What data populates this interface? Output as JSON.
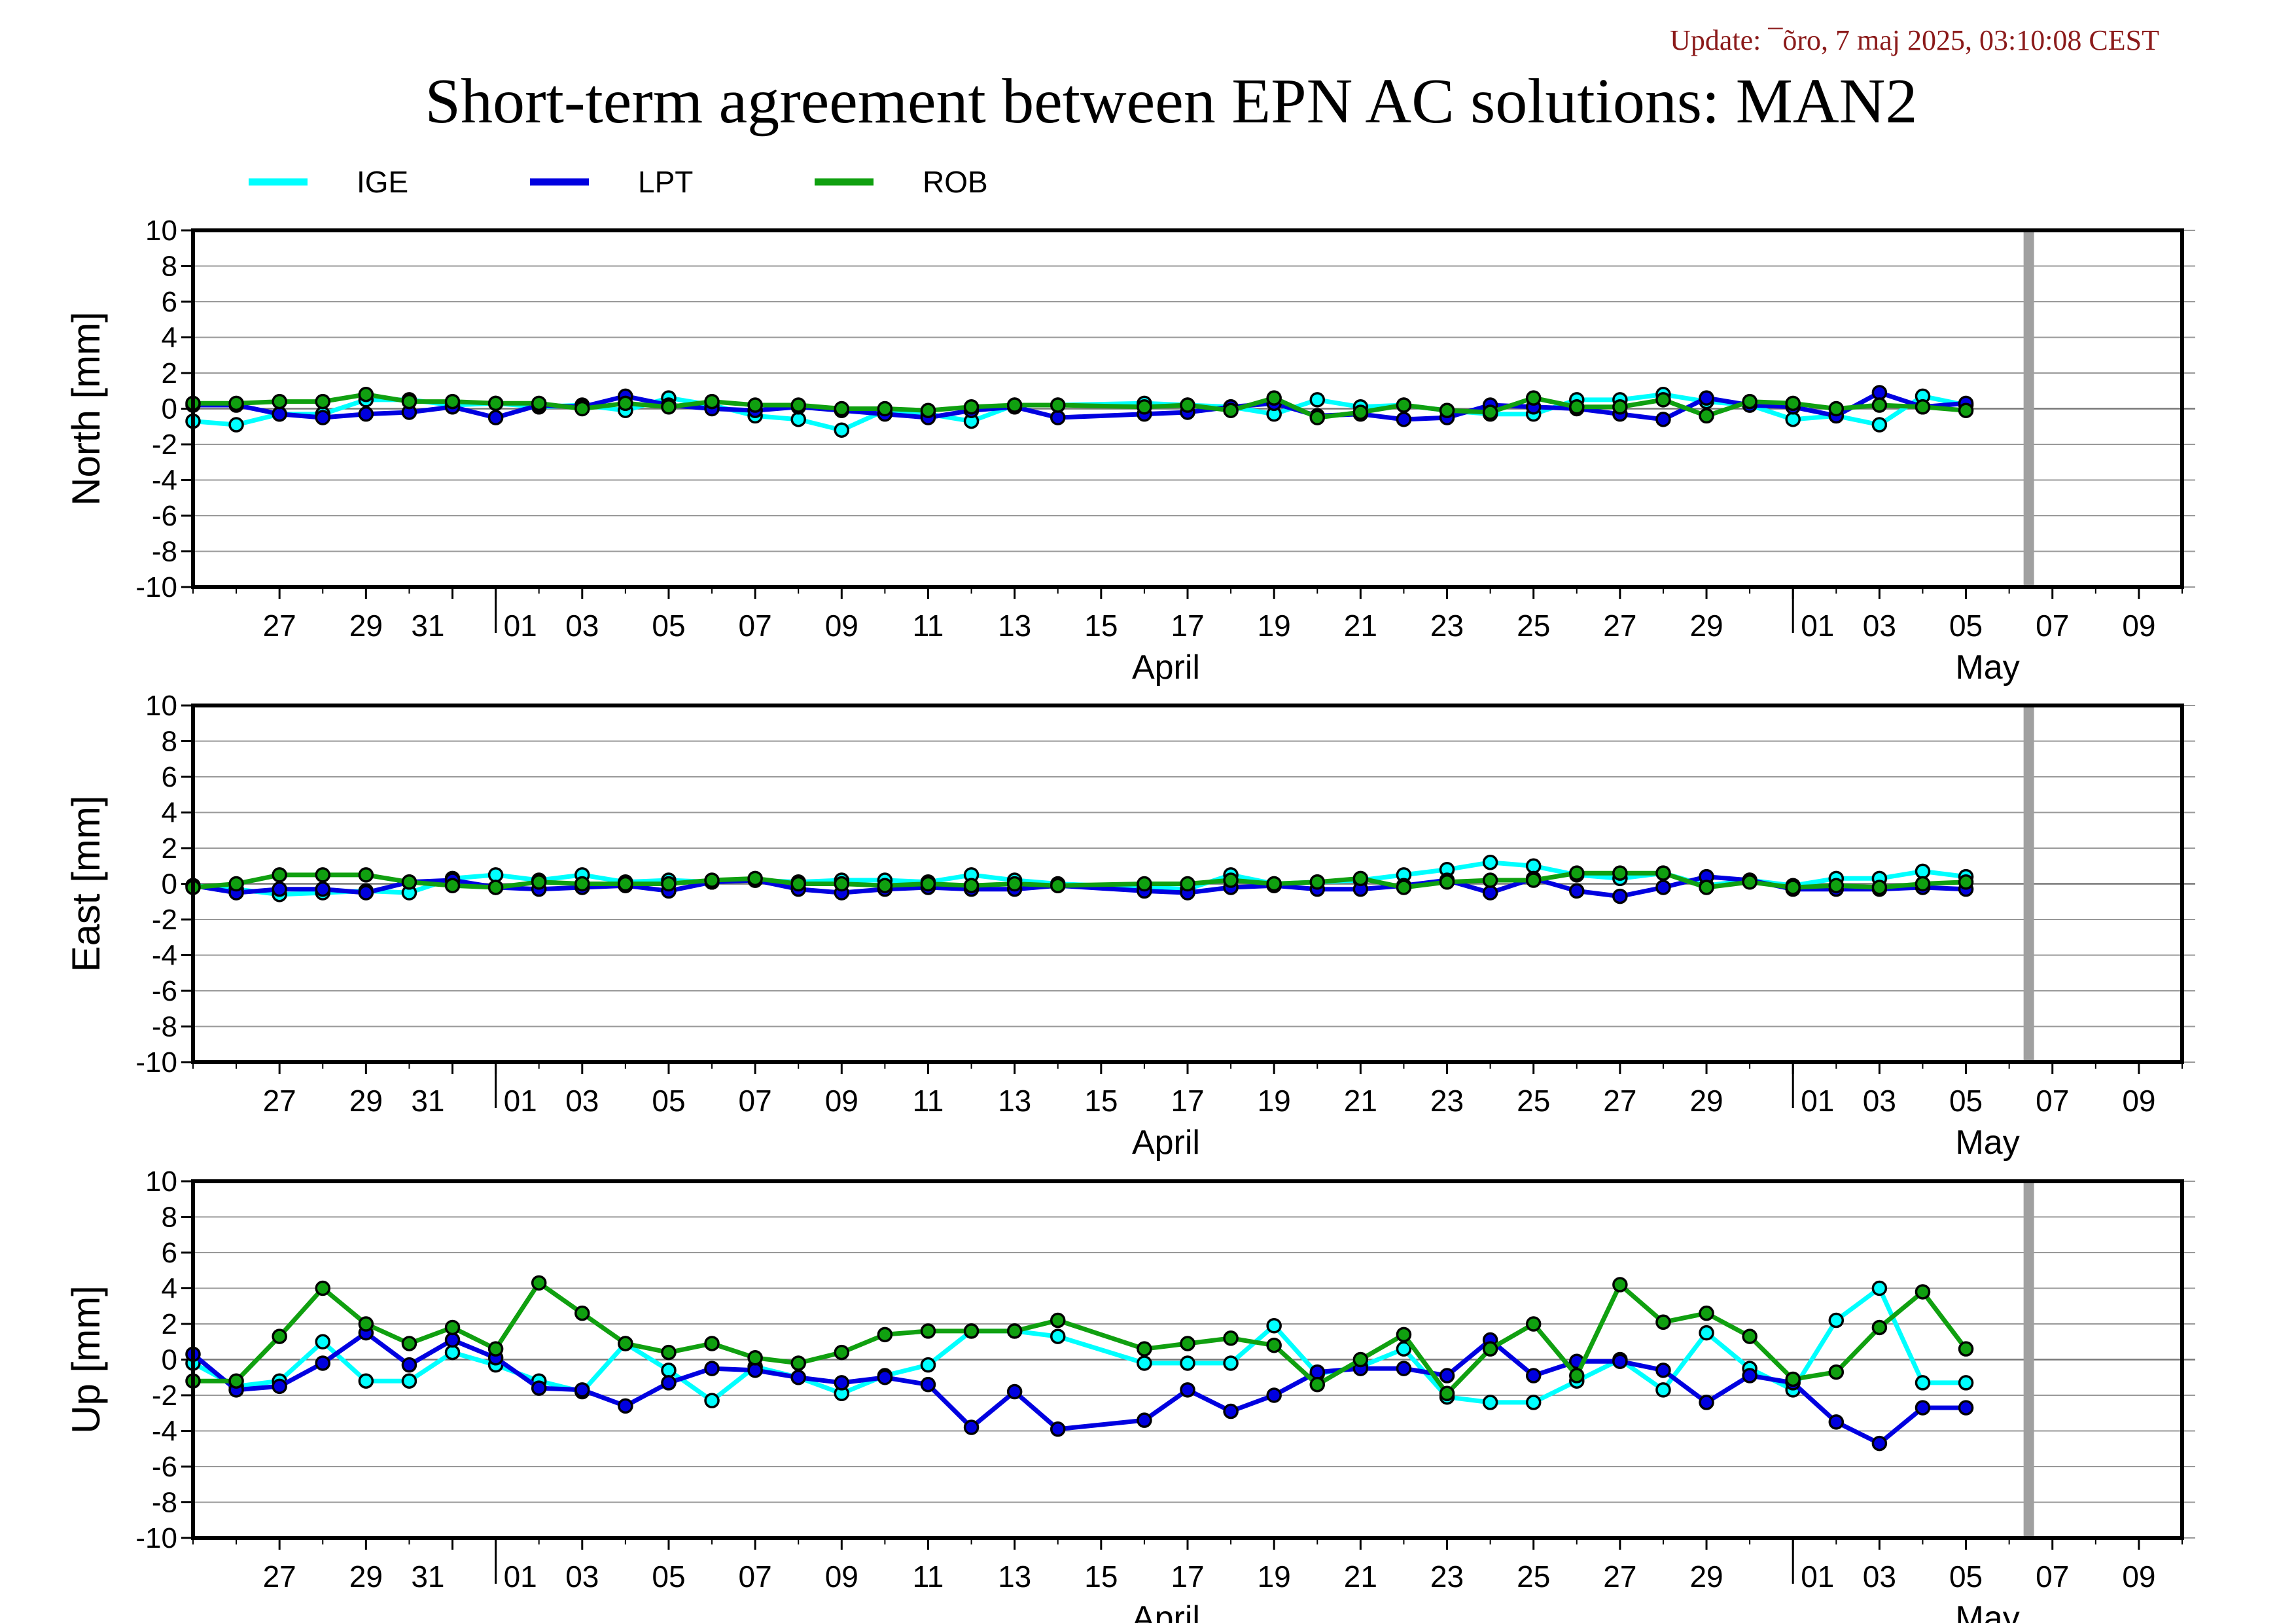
{
  "update_text": "Update: ¯õro, 7 maj 2025, 03:10:08 CEST",
  "title": "Short-term agreement between EPN AC solutions: MAN2",
  "colors": {
    "IGE": "#00ffff",
    "LPT": "#0000e0",
    "ROB": "#10a010",
    "now_marker": "#a0a0a0",
    "update_text": "#8b1a1a"
  },
  "legend": [
    {
      "name": "IGE",
      "color": "#00ffff"
    },
    {
      "name": "LPT",
      "color": "#0000e0"
    },
    {
      "name": "ROB",
      "color": "#10a010"
    }
  ],
  "chart_data": [
    {
      "type": "line",
      "ylabel": "North [mm]",
      "ylim": [
        -10,
        10
      ],
      "yticks": [
        "10",
        "8",
        "6",
        "4",
        "2",
        "0",
        "-2",
        "-4",
        "-6",
        "-8",
        "-10"
      ],
      "x_range": [
        "2025-03-25",
        "2025-05-10"
      ],
      "x_tick_labels": [
        "27",
        "29",
        "31",
        "01",
        "03",
        "05",
        "07",
        "09",
        "11",
        "13",
        "15",
        "17",
        "19",
        "21",
        "23",
        "25",
        "27",
        "29",
        "01",
        "03",
        "05",
        "07",
        "09"
      ],
      "month_labels": [
        "April",
        "May"
      ],
      "now_marker": "2025-05-06",
      "grid": true,
      "series": [
        {
          "name": "IGE",
          "x": [
            "03-25",
            "03-26",
            "03-27",
            "03-28",
            "03-29",
            "03-30",
            "03-31",
            "04-01",
            "04-02",
            "04-03",
            "04-04",
            "04-05",
            "04-06",
            "04-07",
            "04-08",
            "04-09",
            "04-10",
            "04-11",
            "04-12",
            "04-13",
            "04-14",
            "04-16",
            "04-17",
            "04-18",
            "04-19",
            "04-20",
            "04-21",
            "04-22",
            "04-23",
            "04-24",
            "04-25",
            "04-26",
            "04-27",
            "04-28",
            "04-29",
            "04-30",
            "05-01",
            "05-02",
            "05-03",
            "05-04",
            "05-05"
          ],
          "values": [
            -0.7,
            -0.9,
            -0.3,
            -0.3,
            0.5,
            0.5,
            0.2,
            0.3,
            0.1,
            0.2,
            -0.1,
            0.6,
            0.2,
            -0.4,
            -0.6,
            -1.2,
            -0.1,
            -0.3,
            -0.7,
            0.2,
            0.2,
            0.3,
            0.2,
            0.1,
            -0.3,
            0.5,
            0.1,
            0.2,
            -0.1,
            -0.3,
            -0.3,
            0.5,
            0.5,
            0.8,
            0.4,
            0.2,
            -0.6,
            -0.4,
            -0.9,
            0.7,
            0.2
          ]
        },
        {
          "name": "LPT",
          "x": [
            "03-25",
            "03-26",
            "03-27",
            "03-28",
            "03-29",
            "03-30",
            "03-31",
            "04-01",
            "04-02",
            "04-03",
            "04-04",
            "04-05",
            "04-06",
            "04-07",
            "04-08",
            "04-09",
            "04-10",
            "04-11",
            "04-12",
            "04-13",
            "04-14",
            "04-16",
            "04-17",
            "04-18",
            "04-19",
            "04-20",
            "04-21",
            "04-22",
            "04-23",
            "04-24",
            "04-25",
            "04-26",
            "04-27",
            "04-28",
            "04-29",
            "04-30",
            "05-01",
            "05-02",
            "05-03",
            "05-04",
            "05-05"
          ],
          "values": [
            0.2,
            0.2,
            -0.3,
            -0.5,
            -0.3,
            -0.2,
            0.1,
            -0.5,
            0.2,
            0.1,
            0.7,
            0.2,
            0.0,
            -0.1,
            0.1,
            -0.1,
            -0.3,
            -0.5,
            -0.1,
            0.1,
            -0.5,
            -0.3,
            -0.2,
            0.1,
            0.3,
            -0.4,
            -0.3,
            -0.6,
            -0.5,
            0.2,
            0.1,
            0.0,
            -0.3,
            -0.6,
            0.6,
            0.2,
            0.1,
            -0.4,
            0.9,
            0.1,
            0.3
          ]
        },
        {
          "name": "ROB",
          "x": [
            "03-25",
            "03-26",
            "03-27",
            "03-28",
            "03-29",
            "03-30",
            "03-31",
            "04-01",
            "04-02",
            "04-03",
            "04-04",
            "04-05",
            "04-06",
            "04-07",
            "04-08",
            "04-09",
            "04-10",
            "04-11",
            "04-12",
            "04-13",
            "04-14",
            "04-16",
            "04-17",
            "04-18",
            "04-19",
            "04-20",
            "04-21",
            "04-22",
            "04-23",
            "04-24",
            "04-25",
            "04-26",
            "04-27",
            "04-28",
            "04-29",
            "04-30",
            "05-01",
            "05-02",
            "05-03",
            "05-04",
            "05-05"
          ],
          "values": [
            0.3,
            0.3,
            0.4,
            0.4,
            0.8,
            0.4,
            0.4,
            0.3,
            0.3,
            0.0,
            0.3,
            0.1,
            0.4,
            0.2,
            0.2,
            0.0,
            0.0,
            -0.1,
            0.1,
            0.2,
            0.2,
            0.1,
            0.2,
            -0.1,
            0.6,
            -0.5,
            -0.2,
            0.2,
            -0.1,
            -0.2,
            0.6,
            0.1,
            0.1,
            0.5,
            -0.4,
            0.4,
            0.3,
            0.0,
            0.2,
            0.1,
            -0.1
          ]
        }
      ]
    },
    {
      "type": "line",
      "ylabel": "East [mm]",
      "ylim": [
        -10,
        10
      ],
      "yticks": [
        "10",
        "8",
        "6",
        "4",
        "2",
        "0",
        "-2",
        "-4",
        "-6",
        "-8",
        "-10"
      ],
      "x_range": [
        "2025-03-25",
        "2025-05-10"
      ],
      "x_tick_labels": [
        "27",
        "29",
        "31",
        "01",
        "03",
        "05",
        "07",
        "09",
        "11",
        "13",
        "15",
        "17",
        "19",
        "21",
        "23",
        "25",
        "27",
        "29",
        "01",
        "03",
        "05",
        "07",
        "09"
      ],
      "month_labels": [
        "April",
        "May"
      ],
      "now_marker": "2025-05-06",
      "grid": true,
      "series": [
        {
          "name": "IGE",
          "x": [
            "03-25",
            "03-26",
            "03-27",
            "03-28",
            "03-29",
            "03-30",
            "03-31",
            "04-01",
            "04-02",
            "04-03",
            "04-04",
            "04-05",
            "04-06",
            "04-07",
            "04-08",
            "04-09",
            "04-10",
            "04-11",
            "04-12",
            "04-13",
            "04-14",
            "04-16",
            "04-17",
            "04-18",
            "04-19",
            "04-20",
            "04-21",
            "04-22",
            "04-23",
            "04-24",
            "04-25",
            "04-26",
            "04-27",
            "04-28",
            "04-29",
            "04-30",
            "05-01",
            "05-02",
            "05-03",
            "05-04",
            "05-05"
          ],
          "values": [
            -0.1,
            -0.3,
            -0.6,
            -0.5,
            -0.4,
            -0.5,
            0.3,
            0.5,
            0.2,
            0.5,
            0.1,
            0.2,
            0.1,
            0.2,
            0.1,
            0.2,
            0.2,
            0.1,
            0.5,
            0.2,
            0.0,
            -0.2,
            -0.3,
            0.5,
            0.0,
            0.1,
            0.2,
            0.5,
            0.8,
            1.2,
            1.0,
            0.5,
            0.3,
            0.6,
            -0.1,
            0.2,
            -0.1,
            0.3,
            0.3,
            0.7,
            0.4
          ]
        },
        {
          "name": "LPT",
          "x": [
            "03-25",
            "03-26",
            "03-27",
            "03-28",
            "03-29",
            "03-30",
            "03-31",
            "04-01",
            "04-02",
            "04-03",
            "04-04",
            "04-05",
            "04-06",
            "04-07",
            "04-08",
            "04-09",
            "04-10",
            "04-11",
            "04-12",
            "04-13",
            "04-14",
            "04-16",
            "04-17",
            "04-18",
            "04-19",
            "04-20",
            "04-21",
            "04-22",
            "04-23",
            "04-24",
            "04-25",
            "04-26",
            "04-27",
            "04-28",
            "04-29",
            "04-30",
            "05-01",
            "05-02",
            "05-03",
            "05-04",
            "05-05"
          ],
          "values": [
            -0.1,
            -0.5,
            -0.3,
            -0.3,
            -0.5,
            0.1,
            0.2,
            -0.2,
            -0.3,
            -0.2,
            -0.1,
            -0.4,
            0.1,
            0.2,
            -0.3,
            -0.5,
            -0.3,
            -0.2,
            -0.3,
            -0.3,
            -0.1,
            -0.4,
            -0.5,
            -0.2,
            -0.1,
            -0.3,
            -0.3,
            -0.1,
            0.2,
            -0.5,
            0.3,
            -0.4,
            -0.7,
            -0.2,
            0.4,
            0.2,
            -0.3,
            -0.3,
            -0.3,
            -0.2,
            -0.3
          ]
        },
        {
          "name": "ROB",
          "x": [
            "03-25",
            "03-26",
            "03-27",
            "03-28",
            "03-29",
            "03-30",
            "03-31",
            "04-01",
            "04-02",
            "04-03",
            "04-04",
            "04-05",
            "04-06",
            "04-07",
            "04-08",
            "04-09",
            "04-10",
            "04-11",
            "04-12",
            "04-13",
            "04-14",
            "04-16",
            "04-17",
            "04-18",
            "04-19",
            "04-20",
            "04-21",
            "04-22",
            "04-23",
            "04-24",
            "04-25",
            "04-26",
            "04-27",
            "04-28",
            "04-29",
            "04-30",
            "05-01",
            "05-02",
            "05-03",
            "05-04",
            "05-05"
          ],
          "values": [
            -0.2,
            0.0,
            0.5,
            0.5,
            0.5,
            0.1,
            -0.1,
            -0.2,
            0.1,
            0.0,
            0.0,
            0.0,
            0.2,
            0.3,
            0.0,
            0.0,
            -0.1,
            0.0,
            -0.1,
            0.0,
            -0.1,
            0.0,
            0.0,
            0.2,
            0.0,
            0.1,
            0.3,
            -0.2,
            0.1,
            0.2,
            0.2,
            0.6,
            0.6,
            0.6,
            -0.2,
            0.1,
            -0.2,
            -0.1,
            -0.2,
            0.0,
            0.1
          ]
        }
      ]
    },
    {
      "type": "line",
      "ylabel": "Up [mm]",
      "ylim": [
        -10,
        10
      ],
      "yticks": [
        "10",
        "8",
        "6",
        "4",
        "2",
        "0",
        "-2",
        "-4",
        "-6",
        "-8",
        "-10"
      ],
      "x_range": [
        "2025-03-25",
        "2025-05-10"
      ],
      "x_tick_labels": [
        "27",
        "29",
        "31",
        "01",
        "03",
        "05",
        "07",
        "09",
        "11",
        "13",
        "15",
        "17",
        "19",
        "21",
        "23",
        "25",
        "27",
        "29",
        "01",
        "03",
        "05",
        "07",
        "09"
      ],
      "month_labels": [
        "April",
        "May"
      ],
      "now_marker": "2025-05-06",
      "grid": true,
      "series": [
        {
          "name": "IGE",
          "x": [
            "03-25",
            "03-26",
            "03-27",
            "03-28",
            "03-29",
            "03-30",
            "03-31",
            "04-01",
            "04-02",
            "04-03",
            "04-04",
            "04-05",
            "04-06",
            "04-07",
            "04-08",
            "04-09",
            "04-10",
            "04-11",
            "04-12",
            "04-13",
            "04-14",
            "04-16",
            "04-17",
            "04-18",
            "04-19",
            "04-20",
            "04-21",
            "04-22",
            "04-23",
            "04-24",
            "04-25",
            "04-26",
            "04-27",
            "04-28",
            "04-29",
            "04-30",
            "05-01",
            "05-02",
            "05-03",
            "05-04",
            "05-05"
          ],
          "values": [
            -0.2,
            -1.5,
            -1.2,
            1.0,
            -1.2,
            -1.2,
            0.4,
            -0.3,
            -1.2,
            -1.8,
            0.9,
            -0.6,
            -2.3,
            -0.4,
            -1.0,
            -1.9,
            -0.9,
            -0.3,
            1.6,
            1.6,
            1.3,
            -0.2,
            -0.2,
            -0.2,
            1.9,
            -0.8,
            -0.4,
            0.6,
            -2.1,
            -2.4,
            -2.4,
            -1.2,
            0.0,
            -1.7,
            1.5,
            -0.5,
            -1.7,
            2.2,
            4.0,
            -1.3,
            -1.3
          ]
        },
        {
          "name": "LPT",
          "x": [
            "03-25",
            "03-26",
            "03-27",
            "03-28",
            "03-29",
            "03-30",
            "03-31",
            "04-01",
            "04-02",
            "04-03",
            "04-04",
            "04-05",
            "04-06",
            "04-07",
            "04-08",
            "04-09",
            "04-10",
            "04-11",
            "04-12",
            "04-13",
            "04-14",
            "04-16",
            "04-17",
            "04-18",
            "04-19",
            "04-20",
            "04-21",
            "04-22",
            "04-23",
            "04-24",
            "04-25",
            "04-26",
            "04-27",
            "04-28",
            "04-29",
            "04-30",
            "05-01",
            "05-02",
            "05-03",
            "05-04",
            "05-05"
          ],
          "values": [
            0.3,
            -1.7,
            -1.5,
            -0.2,
            1.5,
            -0.3,
            1.1,
            0.1,
            -1.6,
            -1.7,
            -2.6,
            -1.3,
            -0.5,
            -0.6,
            -1.0,
            -1.3,
            -1.0,
            -1.4,
            -3.8,
            -1.8,
            -3.9,
            -3.4,
            -1.7,
            -2.9,
            -2.0,
            -0.7,
            -0.5,
            -0.5,
            -0.9,
            1.1,
            -0.9,
            -0.1,
            -0.1,
            -0.6,
            -2.4,
            -0.9,
            -1.3,
            -3.5,
            -4.7,
            -2.7,
            -2.7
          ]
        },
        {
          "name": "ROB",
          "x": [
            "03-25",
            "03-26",
            "03-27",
            "03-28",
            "03-29",
            "03-30",
            "03-31",
            "04-01",
            "04-02",
            "04-03",
            "04-04",
            "04-05",
            "04-06",
            "04-07",
            "04-08",
            "04-09",
            "04-10",
            "04-11",
            "04-12",
            "04-13",
            "04-14",
            "04-16",
            "04-17",
            "04-18",
            "04-19",
            "04-20",
            "04-21",
            "04-22",
            "04-23",
            "04-24",
            "04-25",
            "04-26",
            "04-27",
            "04-28",
            "04-29",
            "04-30",
            "05-01",
            "05-02",
            "05-03",
            "05-04",
            "05-05"
          ],
          "values": [
            -1.2,
            -1.2,
            1.3,
            4.0,
            2.0,
            0.9,
            1.8,
            0.6,
            4.3,
            2.6,
            0.9,
            0.4,
            0.9,
            0.1,
            -0.2,
            0.4,
            1.4,
            1.6,
            1.6,
            1.6,
            2.2,
            0.6,
            0.9,
            1.2,
            0.8,
            -1.4,
            0.0,
            1.4,
            -1.9,
            0.6,
            2.0,
            -0.9,
            4.2,
            2.1,
            2.6,
            1.3,
            -1.1,
            -0.7,
            1.8,
            3.8,
            0.6
          ]
        }
      ]
    }
  ]
}
